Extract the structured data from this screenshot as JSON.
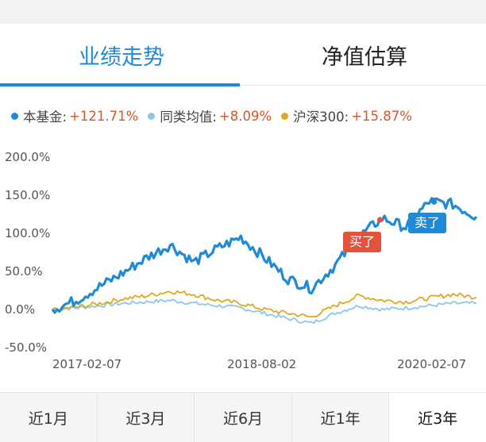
{
  "tabs": [
    {
      "label": "业绩走势",
      "active": true
    },
    {
      "label": "净值估算",
      "active": false
    }
  ],
  "legend": [
    {
      "label": "本基金:",
      "value": "+121.71%",
      "color": "#1f8ad8"
    },
    {
      "label": "同类均值:",
      "value": "+8.09%",
      "color": "#8cc7ea"
    },
    {
      "label": "沪深300:",
      "value": "+15.87%",
      "color": "#e0a820"
    }
  ],
  "markers": {
    "buy": "买了",
    "sell": "卖了"
  },
  "periods": [
    {
      "label": "近1月",
      "active": false
    },
    {
      "label": "近3月",
      "active": false
    },
    {
      "label": "近6月",
      "active": false
    },
    {
      "label": "近1年",
      "active": false
    },
    {
      "label": "近3年",
      "active": true
    }
  ],
  "chart_data": {
    "type": "line",
    "yticks": [
      "200.0%",
      "150.0%",
      "100.0%",
      "50.0%",
      "0.0%",
      "-50.0%"
    ],
    "ylim": [
      -50,
      200
    ],
    "xticks": [
      "2017-02-07",
      "2018-08-02",
      "2020-02-07"
    ],
    "x": [
      "2017-02",
      "2017-04",
      "2017-06",
      "2017-08",
      "2017-10",
      "2017-12",
      "2018-02",
      "2018-04",
      "2018-06",
      "2018-08",
      "2018-10",
      "2018-12",
      "2019-02",
      "2019-04",
      "2019-06",
      "2019-08",
      "2019-10",
      "2019-12",
      "2020-02"
    ],
    "series": [
      {
        "name": "本基金",
        "color": "#1f8ad8",
        "values": [
          0,
          12,
          30,
          48,
          68,
          85,
          62,
          80,
          95,
          68,
          40,
          28,
          58,
          95,
          120,
          108,
          142,
          138,
          121.71
        ]
      },
      {
        "name": "同类均值",
        "color": "#8cc7ea",
        "values": [
          0,
          2,
          5,
          8,
          10,
          12,
          8,
          5,
          2,
          -5,
          -12,
          -18,
          -5,
          5,
          0,
          2,
          5,
          8,
          8.09
        ]
      },
      {
        "name": "沪深300",
        "color": "#e0a820",
        "values": [
          0,
          3,
          8,
          14,
          18,
          24,
          20,
          12,
          8,
          0,
          -5,
          -10,
          5,
          18,
          12,
          10,
          15,
          20,
          15.87
        ]
      }
    ]
  }
}
